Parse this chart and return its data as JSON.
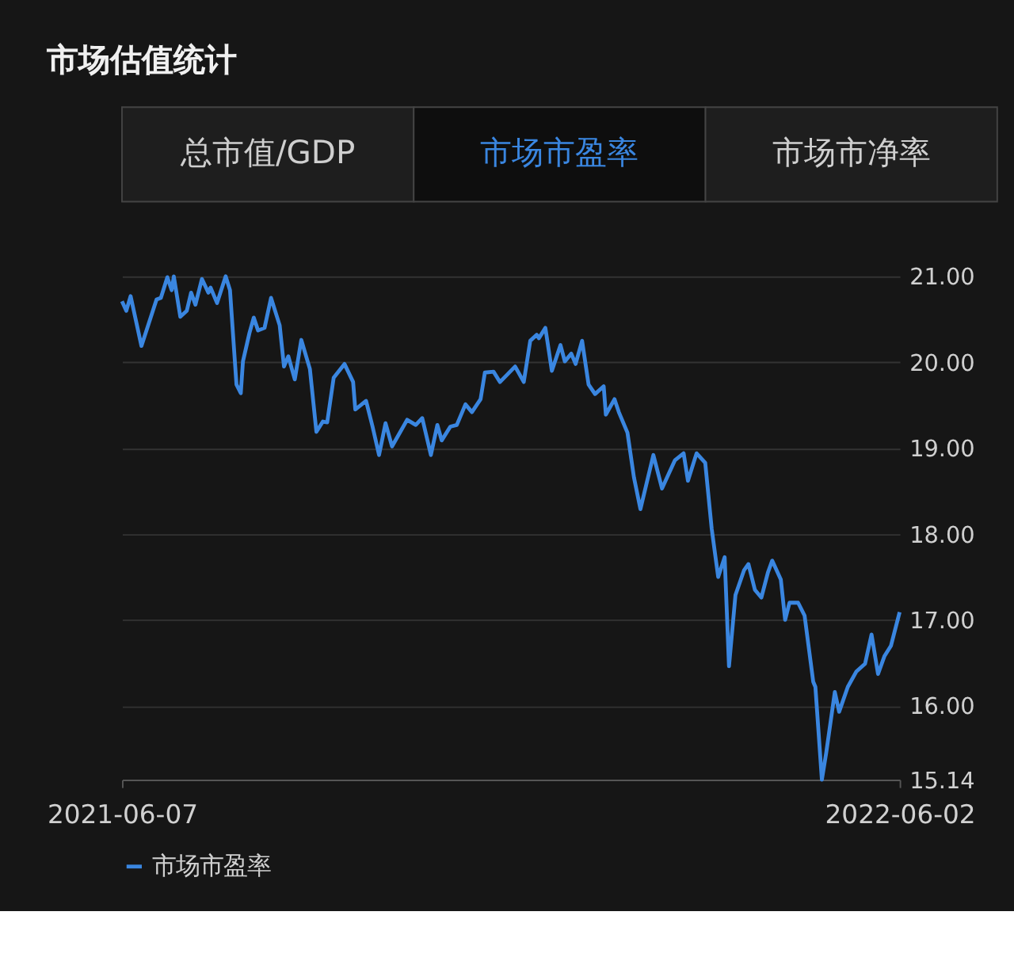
{
  "chart_data": {
    "type": "line",
    "title": "市场估值统计",
    "annotations": [
      "总市值/GDP",
      "市场市盈率",
      "市场市净率"
    ],
    "x": [
      "2021-06-07",
      "2021-06-09",
      "2021-06-11",
      "2021-06-16",
      "2021-06-23",
      "2021-06-25",
      "2021-06-28",
      "2021-06-30",
      "2021-07-01",
      "2021-07-04",
      "2021-07-07",
      "2021-07-09",
      "2021-07-11",
      "2021-07-14",
      "2021-07-17",
      "2021-07-18",
      "2021-07-21",
      "2021-07-25",
      "2021-07-27",
      "2021-07-30",
      "2021-08-01",
      "2021-08-02",
      "2021-08-05",
      "2021-08-07",
      "2021-08-09",
      "2021-08-12",
      "2021-08-15",
      "2021-08-19",
      "2021-08-21",
      "2021-08-23",
      "2021-08-26",
      "2021-08-29",
      "2021-09-02",
      "2021-09-05",
      "2021-09-08",
      "2021-09-10",
      "2021-09-13",
      "2021-09-18",
      "2021-09-22",
      "2021-09-23",
      "2021-09-28",
      "2021-10-01",
      "2021-10-04",
      "2021-10-07",
      "2021-10-10",
      "2021-10-17",
      "2021-10-21",
      "2021-10-24",
      "2021-10-28",
      "2021-10-31",
      "2021-11-02",
      "2021-11-06",
      "2021-11-09",
      "2021-11-13",
      "2021-11-16",
      "2021-11-20",
      "2021-11-22",
      "2021-11-26",
      "2021-11-29",
      "2021-12-06",
      "2021-12-10",
      "2021-12-13",
      "2021-12-16",
      "2021-12-17",
      "2021-12-20",
      "2021-12-23",
      "2021-12-27",
      "2021-12-29",
      "2022-01-01",
      "2022-01-03",
      "2022-01-06",
      "2022-01-09",
      "2022-01-12",
      "2022-01-16",
      "2022-01-17",
      "2022-01-21",
      "2022-01-23",
      "2022-01-27",
      "2022-01-30",
      "2022-02-02",
      "2022-02-08",
      "2022-02-12",
      "2022-02-18",
      "2022-02-22",
      "2022-02-24",
      "2022-02-28",
      "2022-03-04",
      "2022-03-07",
      "2022-03-10",
      "2022-03-13",
      "2022-03-15",
      "2022-03-18",
      "2022-03-22",
      "2022-03-24",
      "2022-03-27",
      "2022-03-30",
      "2022-04-02",
      "2022-04-04",
      "2022-04-08",
      "2022-04-10",
      "2022-04-12",
      "2022-04-16",
      "2022-04-19",
      "2022-04-23",
      "2022-04-24",
      "2022-04-27",
      "2022-04-29",
      "2022-05-03",
      "2022-05-05",
      "2022-05-09",
      "2022-05-13",
      "2022-05-17",
      "2022-05-20",
      "2022-05-23",
      "2022-05-26",
      "2022-05-29",
      "2022-06-02"
    ],
    "series": [
      {
        "name": "市场市盈率",
        "color": "#3a86e0",
        "values": [
          20.71,
          20.6,
          20.77,
          20.19,
          20.73,
          20.75,
          20.99,
          20.84,
          21.0,
          20.53,
          20.6,
          20.81,
          20.67,
          20.97,
          20.81,
          20.87,
          20.69,
          21.0,
          20.84,
          19.74,
          19.64,
          20.01,
          20.34,
          20.52,
          20.37,
          20.4,
          20.75,
          20.43,
          19.95,
          20.07,
          19.8,
          20.26,
          19.92,
          19.19,
          19.31,
          19.3,
          19.82,
          19.98,
          19.77,
          19.45,
          19.55,
          19.25,
          18.92,
          19.29,
          19.02,
          19.33,
          19.27,
          19.35,
          18.92,
          19.27,
          19.09,
          19.25,
          19.27,
          19.51,
          19.42,
          19.57,
          19.88,
          19.89,
          19.77,
          19.95,
          19.77,
          20.25,
          20.32,
          20.28,
          20.4,
          19.9,
          20.2,
          20.01,
          20.1,
          19.98,
          20.25,
          19.74,
          19.63,
          19.72,
          19.39,
          19.57,
          19.42,
          19.18,
          18.66,
          18.29,
          18.92,
          18.53,
          18.86,
          18.94,
          18.62,
          18.94,
          18.83,
          18.06,
          17.5,
          17.73,
          16.46,
          17.29,
          17.58,
          17.65,
          17.35,
          17.26,
          17.55,
          17.69,
          17.47,
          17.0,
          17.2,
          17.2,
          17.05,
          16.28,
          16.22,
          15.14,
          15.45,
          16.16,
          15.93,
          16.22,
          16.4,
          16.49,
          16.83,
          16.37,
          16.58,
          16.7,
          17.09
        ]
      }
    ],
    "xlim": [
      "2021-06-07",
      "2022-06-02"
    ],
    "xticks": [
      "2021-06-07",
      "2022-06-02"
    ],
    "ylim": [
      15.14,
      21.0
    ],
    "yticks": [
      {
        "value": 15.14,
        "label": "15.14"
      },
      {
        "value": 16,
        "label": "16.00"
      },
      {
        "value": 17,
        "label": "17.00"
      },
      {
        "value": 18,
        "label": "18.00"
      },
      {
        "value": 19,
        "label": "19.00"
      },
      {
        "value": 20,
        "label": "20.00"
      },
      {
        "value": 21,
        "label": "21.00"
      }
    ],
    "grid": "y",
    "legend": "bottom",
    "marker": "none",
    "line_style": "solid"
  }
}
